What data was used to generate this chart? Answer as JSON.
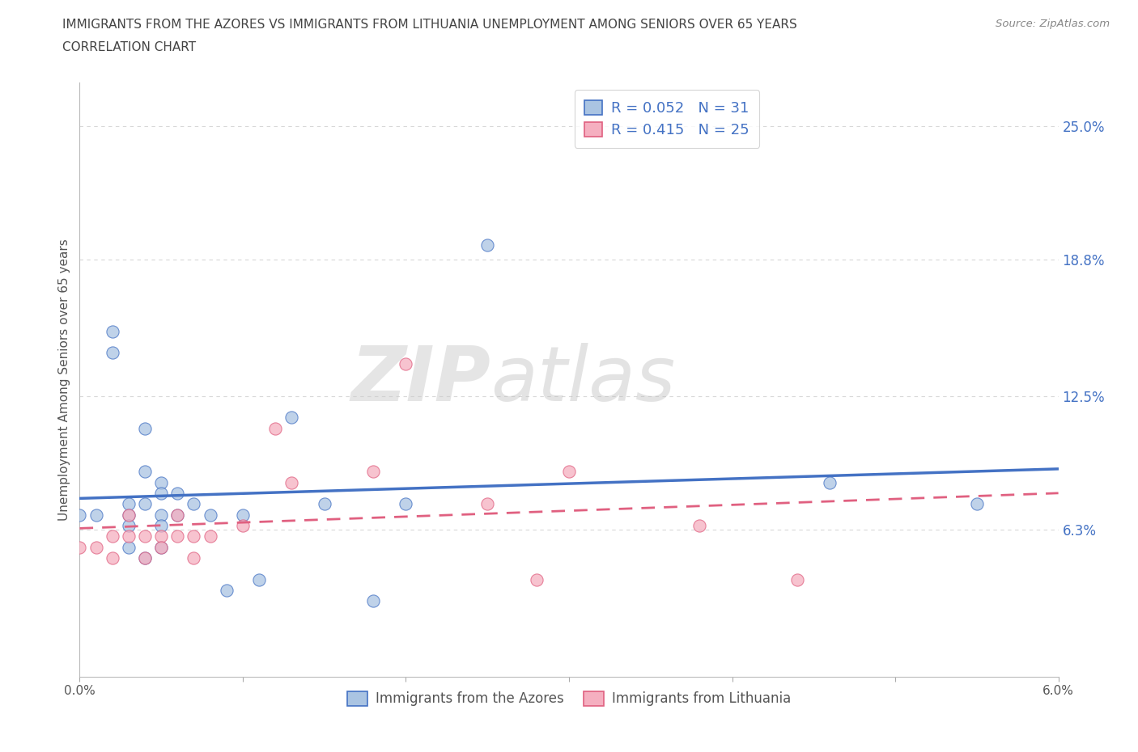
{
  "title_line1": "IMMIGRANTS FROM THE AZORES VS IMMIGRANTS FROM LITHUANIA UNEMPLOYMENT AMONG SENIORS OVER 65 YEARS",
  "title_line2": "CORRELATION CHART",
  "source_text": "Source: ZipAtlas.com",
  "ylabel": "Unemployment Among Seniors over 65 years",
  "xlim": [
    0.0,
    0.06
  ],
  "ylim": [
    -0.005,
    0.27
  ],
  "xticks": [
    0.0,
    0.01,
    0.02,
    0.03,
    0.04,
    0.05,
    0.06
  ],
  "xtick_labels": [
    "0.0%",
    "",
    "",
    "",
    "",
    "",
    "6.0%"
  ],
  "ytick_positions": [
    0.063,
    0.125,
    0.188,
    0.25
  ],
  "ytick_labels": [
    "6.3%",
    "12.5%",
    "18.8%",
    "25.0%"
  ],
  "R_azores": 0.052,
  "N_azores": 31,
  "R_lithuania": 0.415,
  "N_lithuania": 25,
  "color_azores": "#aac4e2",
  "color_lithuania": "#f5afc0",
  "line_color_azores": "#4472c4",
  "line_color_lithuania": "#e06080",
  "watermark_zip": "ZIP",
  "watermark_atlas": "atlas",
  "legend_label_azores": "Immigrants from the Azores",
  "legend_label_lithuania": "Immigrants from Lithuania",
  "azores_x": [
    0.0,
    0.001,
    0.002,
    0.002,
    0.003,
    0.003,
    0.003,
    0.003,
    0.004,
    0.004,
    0.004,
    0.004,
    0.005,
    0.005,
    0.005,
    0.005,
    0.005,
    0.006,
    0.006,
    0.007,
    0.008,
    0.009,
    0.01,
    0.011,
    0.013,
    0.015,
    0.018,
    0.02,
    0.025,
    0.046,
    0.055
  ],
  "azores_y": [
    0.07,
    0.07,
    0.155,
    0.145,
    0.075,
    0.07,
    0.065,
    0.055,
    0.11,
    0.09,
    0.075,
    0.05,
    0.085,
    0.08,
    0.07,
    0.065,
    0.055,
    0.08,
    0.07,
    0.075,
    0.07,
    0.035,
    0.07,
    0.04,
    0.115,
    0.075,
    0.03,
    0.075,
    0.195,
    0.085,
    0.075
  ],
  "lithuania_x": [
    0.0,
    0.001,
    0.002,
    0.002,
    0.003,
    0.003,
    0.004,
    0.004,
    0.005,
    0.005,
    0.006,
    0.006,
    0.007,
    0.007,
    0.008,
    0.01,
    0.012,
    0.013,
    0.018,
    0.02,
    0.025,
    0.028,
    0.03,
    0.038,
    0.044
  ],
  "lithuania_y": [
    0.055,
    0.055,
    0.06,
    0.05,
    0.07,
    0.06,
    0.06,
    0.05,
    0.06,
    0.055,
    0.07,
    0.06,
    0.06,
    0.05,
    0.06,
    0.065,
    0.11,
    0.085,
    0.09,
    0.14,
    0.075,
    0.04,
    0.09,
    0.065,
    0.04
  ],
  "background_color": "#ffffff",
  "grid_color": "#d8d8d8",
  "title_color": "#444444",
  "axis_color": "#bbbbbb"
}
